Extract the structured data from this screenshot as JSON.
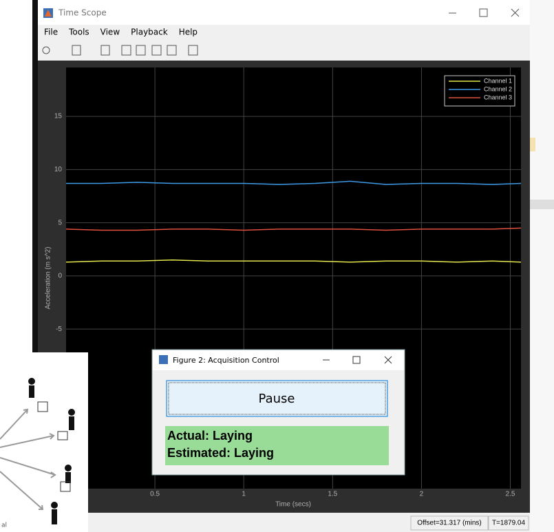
{
  "window": {
    "title": "Time Scope",
    "menu": [
      "File",
      "Tools",
      "View",
      "Playback",
      "Help"
    ]
  },
  "status_bar": {
    "offset": "Offset=31.317 (mins)",
    "time": "T=1879.04"
  },
  "dialog": {
    "title": "Figure 2: Acquisition Control",
    "button": "Pause",
    "actual": "Actual: Laying",
    "estimated": "Estimated: Laying"
  },
  "left_image": {
    "caption": "al"
  },
  "chart_data": {
    "type": "line",
    "x_label": "Time (secs)",
    "y_label": "Acceleration (m s^2)",
    "x": [
      0,
      0.2,
      0.4,
      0.6,
      0.8,
      1,
      1.2,
      1.4,
      1.6,
      1.8,
      2,
      2.2,
      2.4,
      2.56
    ],
    "series": [
      {
        "name": "Channel 1",
        "color": "#e6e64c",
        "values": [
          1.3,
          1.4,
          1.4,
          1.5,
          1.4,
          1.4,
          1.4,
          1.4,
          1.3,
          1.4,
          1.4,
          1.3,
          1.4,
          1.3
        ]
      },
      {
        "name": "Channel 2",
        "color": "#3d9be9",
        "values": [
          8.7,
          8.7,
          8.8,
          8.7,
          8.7,
          8.7,
          8.6,
          8.7,
          8.9,
          8.6,
          8.7,
          8.7,
          8.6,
          8.7
        ]
      },
      {
        "name": "Channel 3",
        "color": "#e0503c",
        "values": [
          4.4,
          4.3,
          4.3,
          4.4,
          4.4,
          4.3,
          4.4,
          4.4,
          4.4,
          4.3,
          4.4,
          4.4,
          4.4,
          4.5
        ]
      }
    ],
    "xlim": [
      0,
      2.56
    ],
    "ylim": [
      -20,
      19.6
    ],
    "xticks": [
      0.5,
      1,
      1.5,
      2,
      2.5
    ],
    "yticks": [
      -5,
      0,
      5,
      10,
      15
    ],
    "grid": true,
    "legend": "top-right"
  }
}
